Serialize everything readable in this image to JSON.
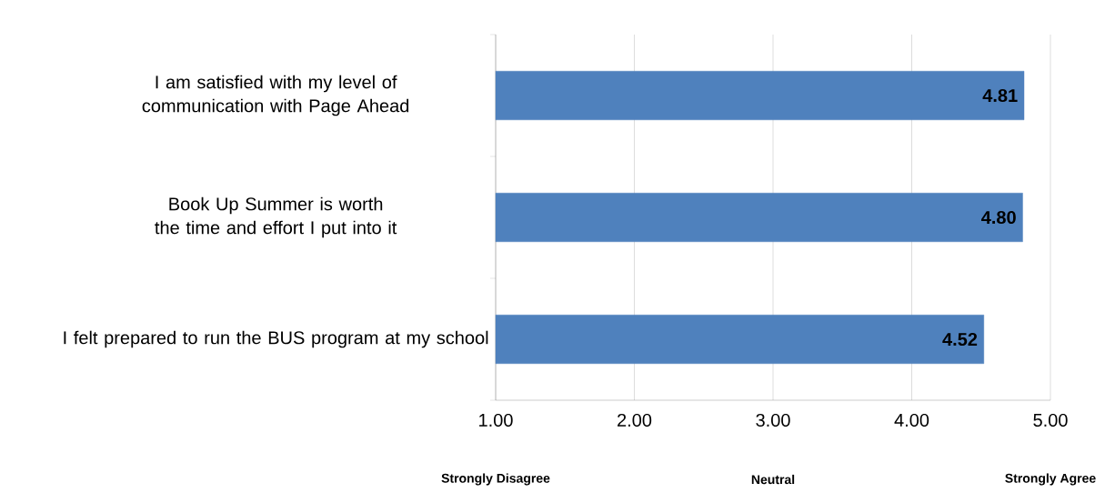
{
  "chart_data": {
    "type": "bar",
    "orientation": "horizontal",
    "categories": [
      "I am satisfied with my level of communication with Page Ahead",
      "Book Up Summer is worth the time and effort I put into it",
      "I felt prepared to run the BUS program at my school"
    ],
    "values": [
      4.81,
      4.8,
      4.52
    ],
    "value_labels": [
      "4.81",
      "4.80",
      "4.52"
    ],
    "color": "#4f81bd",
    "xlim": [
      1,
      5
    ],
    "xticks": [
      {
        "value": 1,
        "label": "1.00"
      },
      {
        "value": 2,
        "label": "2.00"
      },
      {
        "value": 3,
        "label": "3.00"
      },
      {
        "value": 4,
        "label": "4.00"
      },
      {
        "value": 5,
        "label": "5.00"
      }
    ],
    "grid": "x",
    "annotations": [
      "Strongly Disagree",
      "Neutral",
      "Strongly Agree"
    ]
  }
}
